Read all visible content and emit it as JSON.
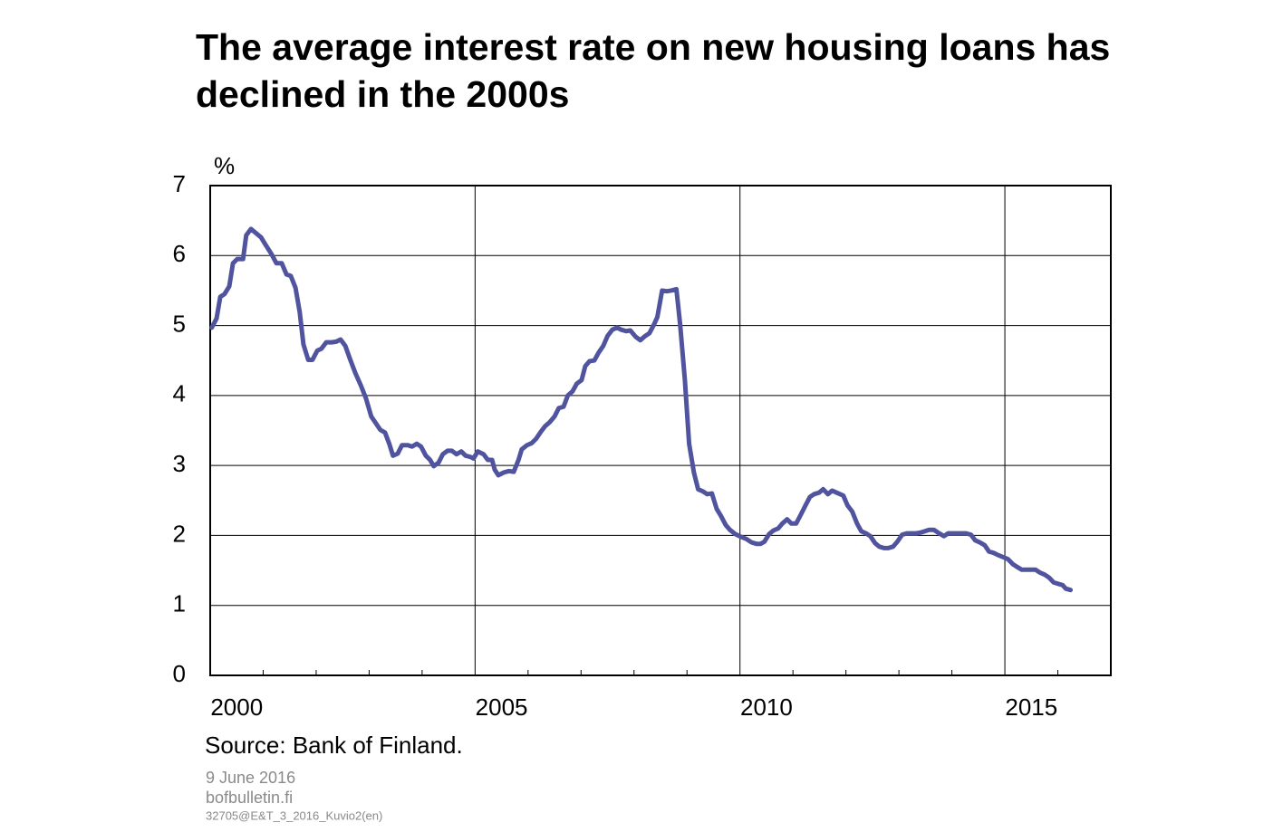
{
  "chart_data": {
    "type": "line",
    "title": "The average interest rate on new housing loans has declined in the 2000s",
    "ylabel": "%",
    "source": "Source: Bank of Finland.",
    "notes": [
      "9 June 2016",
      "bofbulletin.fi",
      "32705@E&T_3_2016_Kuvio2(en)"
    ],
    "color": "#50549e",
    "xlim": [
      2000,
      2017
    ],
    "ylim": [
      0,
      7
    ],
    "yticks": [
      0,
      1,
      2,
      3,
      4,
      5,
      6,
      7
    ],
    "xticks": [
      {
        "value": 2000.5,
        "label": "2000"
      },
      {
        "value": 2005.5,
        "label": "2005"
      },
      {
        "value": 2010.5,
        "label": "2010"
      },
      {
        "value": 2015.5,
        "label": "2015"
      }
    ],
    "xgrid": [
      2005,
      2010,
      2015
    ],
    "xminor_ticks": [
      2001,
      2002,
      2003,
      2004,
      2006,
      2007,
      2008,
      2009,
      2011,
      2012,
      2013,
      2014,
      2016
    ],
    "grid": true,
    "x": [
      2000.03,
      2000.12,
      2000.19,
      2000.27,
      2000.36,
      2000.43,
      2000.51,
      2000.62,
      2000.68,
      2000.77,
      2000.85,
      2000.96,
      2001.04,
      2001.15,
      2001.25,
      2001.35,
      2001.44,
      2001.52,
      2001.61,
      2001.69,
      2001.76,
      2001.85,
      2001.93,
      2002.02,
      2002.1,
      2002.19,
      2002.29,
      2002.38,
      2002.46,
      2002.55,
      2002.63,
      2002.74,
      2002.84,
      2002.94,
      2003.04,
      2003.13,
      2003.21,
      2003.3,
      2003.38,
      2003.45,
      2003.54,
      2003.62,
      2003.73,
      2003.81,
      2003.9,
      2003.98,
      2004.07,
      2004.15,
      2004.22,
      2004.31,
      2004.39,
      2004.48,
      2004.56,
      2004.65,
      2004.74,
      2004.82,
      2004.92,
      2004.97,
      2005.05,
      2005.16,
      2005.24,
      2005.32,
      2005.37,
      2005.44,
      2005.54,
      2005.64,
      2005.73,
      2005.82,
      2005.88,
      2005.98,
      2006.07,
      2006.15,
      2006.24,
      2006.32,
      2006.41,
      2006.5,
      2006.58,
      2006.67,
      2006.75,
      2006.84,
      2006.92,
      2007.01,
      2007.08,
      2007.16,
      2007.25,
      2007.33,
      2007.42,
      2007.5,
      2007.59,
      2007.68,
      2007.76,
      2007.85,
      2007.93,
      2008.03,
      2008.12,
      2008.21,
      2008.29,
      2008.38,
      2008.44,
      2008.53,
      2008.62,
      2008.7,
      2008.8,
      2008.87,
      2008.96,
      2009.04,
      2009.13,
      2009.21,
      2009.3,
      2009.38,
      2009.47,
      2009.56,
      2009.64,
      2009.73,
      2009.81,
      2009.91,
      2010.02,
      2010.12,
      2010.22,
      2010.31,
      2010.39,
      2010.46,
      2010.55,
      2010.63,
      2010.72,
      2010.8,
      2010.89,
      2010.97,
      2011.06,
      2011.15,
      2011.23,
      2011.32,
      2011.4,
      2011.49,
      2011.57,
      2011.66,
      2011.74,
      2011.83,
      2011.95,
      2012.03,
      2012.12,
      2012.21,
      2012.29,
      2012.38,
      2012.46,
      2012.55,
      2012.63,
      2012.72,
      2012.8,
      2012.89,
      2012.97,
      2013.06,
      2013.15,
      2013.23,
      2013.32,
      2013.4,
      2013.49,
      2013.57,
      2013.66,
      2013.74,
      2013.85,
      2013.93,
      2014.02,
      2014.1,
      2014.19,
      2014.27,
      2014.36,
      2014.44,
      2014.53,
      2014.62,
      2014.7,
      2014.79,
      2014.87,
      2014.97,
      2015.06,
      2015.15,
      2015.23,
      2015.32,
      2015.4,
      2015.49,
      2015.58,
      2015.66,
      2015.75,
      2015.83,
      2015.92,
      2016.0,
      2016.09,
      2016.15,
      2016.24
    ],
    "values": [
      4.97,
      5.1,
      5.41,
      5.45,
      5.56,
      5.89,
      5.95,
      5.95,
      6.29,
      6.38,
      6.33,
      6.26,
      6.16,
      6.03,
      5.89,
      5.89,
      5.73,
      5.71,
      5.54,
      5.19,
      4.73,
      4.51,
      4.51,
      4.64,
      4.67,
      4.76,
      4.76,
      4.77,
      4.8,
      4.71,
      4.54,
      4.32,
      4.15,
      3.96,
      3.7,
      3.6,
      3.51,
      3.47,
      3.31,
      3.14,
      3.17,
      3.29,
      3.29,
      3.27,
      3.31,
      3.27,
      3.14,
      3.08,
      2.99,
      3.04,
      3.16,
      3.21,
      3.21,
      3.16,
      3.2,
      3.14,
      3.12,
      3.1,
      3.2,
      3.16,
      3.08,
      3.08,
      2.94,
      2.86,
      2.9,
      2.92,
      2.91,
      3.08,
      3.23,
      3.29,
      3.32,
      3.38,
      3.48,
      3.56,
      3.62,
      3.7,
      3.82,
      3.84,
      4.0,
      4.06,
      4.17,
      4.22,
      4.42,
      4.49,
      4.5,
      4.61,
      4.71,
      4.85,
      4.94,
      4.97,
      4.94,
      4.92,
      4.93,
      4.84,
      4.79,
      4.85,
      4.89,
      5.02,
      5.12,
      5.5,
      5.49,
      5.5,
      5.52,
      5.02,
      4.22,
      3.31,
      2.9,
      2.66,
      2.63,
      2.59,
      2.6,
      2.38,
      2.28,
      2.15,
      2.08,
      2.02,
      1.98,
      1.95,
      1.9,
      1.88,
      1.88,
      1.91,
      2.02,
      2.07,
      2.1,
      2.17,
      2.23,
      2.17,
      2.17,
      2.3,
      2.42,
      2.55,
      2.59,
      2.61,
      2.66,
      2.59,
      2.64,
      2.61,
      2.57,
      2.43,
      2.34,
      2.17,
      2.06,
      2.03,
      1.99,
      1.89,
      1.84,
      1.82,
      1.82,
      1.84,
      1.91,
      2.01,
      2.03,
      2.03,
      2.03,
      2.04,
      2.06,
      2.08,
      2.08,
      2.04,
      1.99,
      2.03,
      2.03,
      2.03,
      2.03,
      2.03,
      2.01,
      1.93,
      1.9,
      1.86,
      1.77,
      1.75,
      1.72,
      1.69,
      1.66,
      1.59,
      1.55,
      1.51,
      1.51,
      1.51,
      1.51,
      1.47,
      1.44,
      1.4,
      1.33,
      1.31,
      1.29,
      1.24,
      1.22
    ]
  }
}
